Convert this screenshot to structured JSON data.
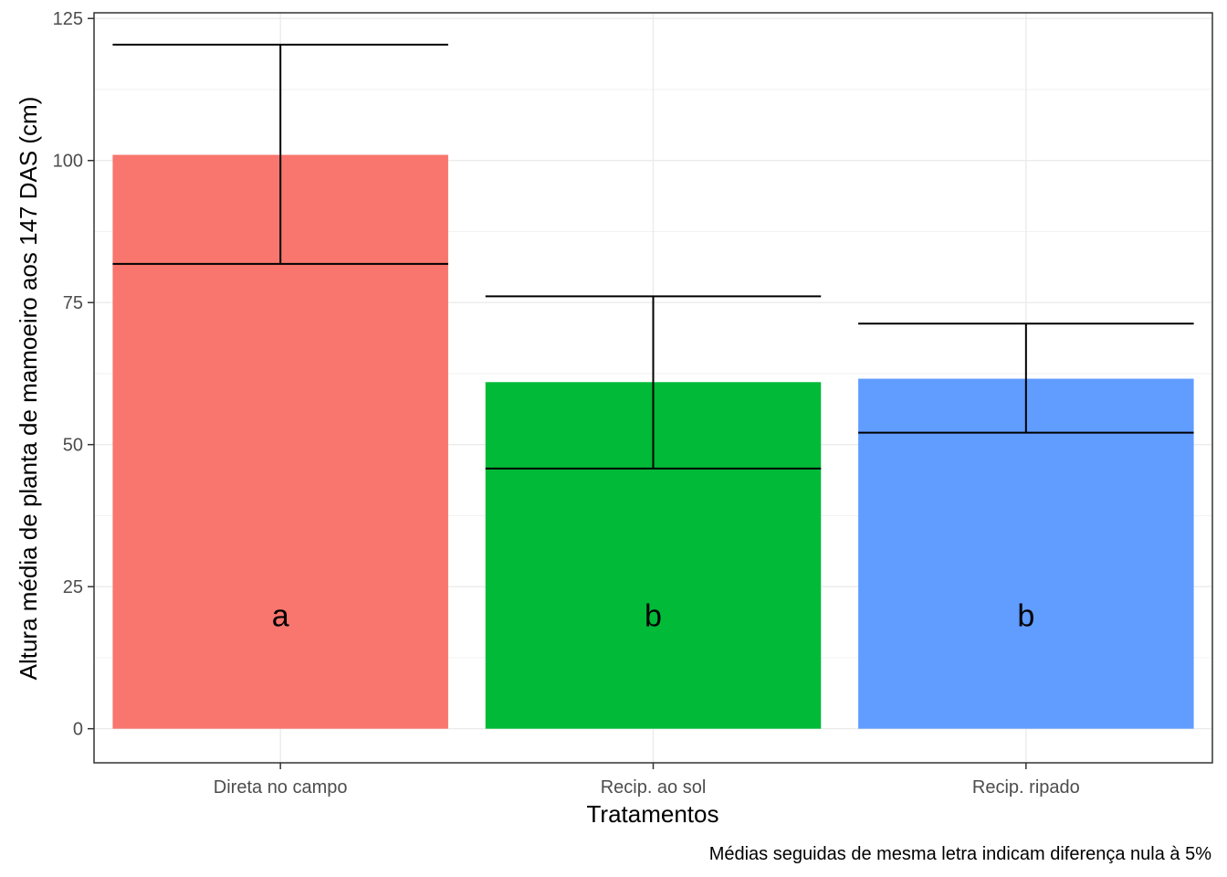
{
  "chart_data": {
    "type": "bar",
    "categories": [
      "Direta no campo",
      "Recip. ao sol",
      "Recip. ripado"
    ],
    "values": [
      101.0,
      61.0,
      61.6
    ],
    "error_low": [
      81.8,
      45.8,
      52.1
    ],
    "error_high": [
      120.4,
      76.1,
      71.3
    ],
    "letters": [
      "a",
      "b",
      "b"
    ],
    "colors": [
      "#F8766D",
      "#00BA38",
      "#619CFF"
    ],
    "xlabel": "Tratamentos",
    "ylabel": "Altura média de planta de mamoeiro aos 147 DAS (cm)",
    "caption": "Médias seguidas de mesma letra indicam diferença nula à 5%",
    "ylim": [
      -6,
      126
    ],
    "yticks": [
      0,
      25,
      50,
      75,
      100,
      125
    ],
    "grid": true,
    "legend": "none"
  }
}
